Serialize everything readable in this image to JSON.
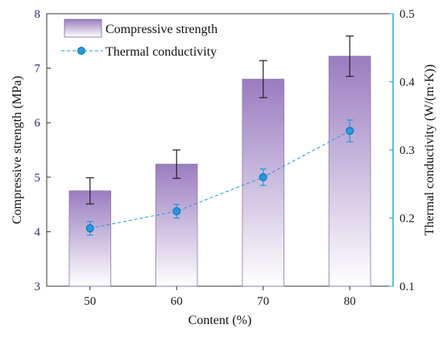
{
  "chart_data": {
    "type": "bar+line",
    "categories": [
      "50",
      "60",
      "70",
      "80"
    ],
    "xlabel": "Content (%)",
    "series": [
      {
        "name": "Compressive strength",
        "type": "bar",
        "axis": "left",
        "values": [
          4.75,
          5.24,
          6.8,
          7.22
        ],
        "errors": [
          0.24,
          0.26,
          0.34,
          0.37
        ],
        "color_top": "#9a7cc0",
        "color_bottom": "#ffffff"
      },
      {
        "name": "Thermal conductivity",
        "type": "line",
        "axis": "right",
        "values": [
          0.185,
          0.21,
          0.26,
          0.328
        ],
        "errors": [
          0.01,
          0.01,
          0.012,
          0.016
        ],
        "color": "#1e9be0"
      }
    ],
    "y_left": {
      "label": "Compressive strength (MPa)",
      "min": 3,
      "max": 8,
      "ticks": [
        "3",
        "4",
        "5",
        "6",
        "7",
        "8"
      ],
      "color": "#2a2f6b"
    },
    "y_right": {
      "label": "Thermal conductivity (W/(m·K))",
      "min": 0.1,
      "max": 0.5,
      "ticks": [
        "0.1",
        "0.2",
        "0.3",
        "0.4",
        "0.5"
      ],
      "color": "#1ab0e0"
    },
    "legend_position": "top-left",
    "grid": false
  }
}
